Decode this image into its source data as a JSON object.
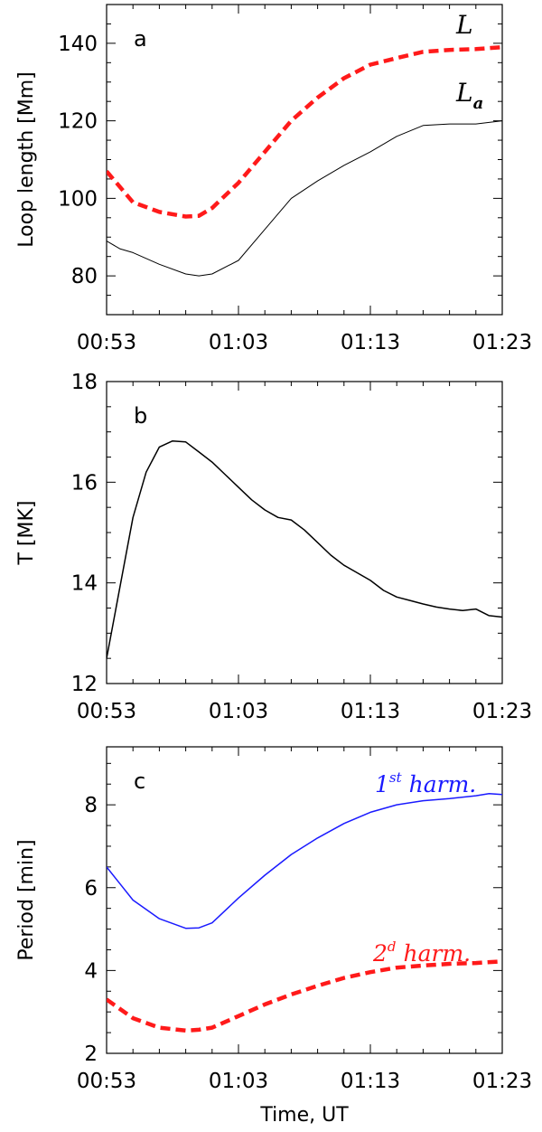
{
  "chart_data": [
    {
      "type": "line",
      "panel_label": "a",
      "ylabel": "Loop length [Mm]",
      "xlabel": "",
      "xlim": [
        "00:53",
        "01:23"
      ],
      "ylim": [
        70,
        150
      ],
      "xticks": [
        "00:53",
        "01:03",
        "01:13",
        "01:23"
      ],
      "yticks": [
        "80",
        "100",
        "120",
        "140"
      ],
      "series": [
        {
          "name": "L",
          "color": "#ff1a1a",
          "style": "dashed-thick",
          "x": [
            "00:53",
            "00:55",
            "00:57",
            "00:59",
            "01:00",
            "01:01",
            "01:03",
            "01:05",
            "01:07",
            "01:09",
            "01:11",
            "01:13",
            "01:15",
            "01:17",
            "01:19",
            "01:21",
            "01:23"
          ],
          "y": [
            107,
            99,
            96.5,
            95.3,
            95.5,
            97.5,
            104,
            112,
            120,
            126,
            131,
            134.5,
            136.2,
            137.8,
            138.3,
            138.5,
            139
          ]
        },
        {
          "name": "L_a",
          "color": "#000000",
          "style": "solid-thin",
          "x": [
            "00:53",
            "00:54",
            "00:55",
            "00:57",
            "00:59",
            "01:00",
            "01:01",
            "01:03",
            "01:05",
            "01:07",
            "01:09",
            "01:11",
            "01:13",
            "01:15",
            "01:17",
            "01:19",
            "01:21",
            "01:23"
          ],
          "y": [
            89,
            87,
            86,
            83,
            80.5,
            80,
            80.5,
            84,
            92,
            100,
            104.5,
            108.5,
            112,
            116,
            118.8,
            119.2,
            119.2,
            120
          ]
        }
      ],
      "annotations": [
        {
          "text": "L",
          "series": "L"
        },
        {
          "text": "L",
          "subscript": "a",
          "series": "L_a"
        }
      ]
    },
    {
      "type": "line",
      "panel_label": "b",
      "ylabel": "T [MK]",
      "xlabel": "",
      "xlim": [
        "00:53",
        "01:23"
      ],
      "ylim": [
        12,
        18
      ],
      "xticks": [
        "00:53",
        "01:03",
        "01:13",
        "01:23"
      ],
      "yticks": [
        "12",
        "14",
        "16",
        "18"
      ],
      "series": [
        {
          "color": "#000000",
          "style": "solid",
          "x": [
            "00:53",
            "00:54",
            "00:55",
            "00:56",
            "00:57",
            "00:58",
            "00:59",
            "01:00",
            "01:01",
            "01:02",
            "01:03",
            "01:04",
            "01:05",
            "01:06",
            "01:07",
            "01:08",
            "01:09",
            "01:10",
            "01:11",
            "01:12",
            "01:13",
            "01:14",
            "01:15",
            "01:16",
            "01:17",
            "01:18",
            "01:19",
            "01:20",
            "01:21",
            "01:22",
            "01:23"
          ],
          "y": [
            12.5,
            13.9,
            15.3,
            16.2,
            16.7,
            16.82,
            16.8,
            16.6,
            16.4,
            16.15,
            15.9,
            15.65,
            15.45,
            15.3,
            15.25,
            15.05,
            14.8,
            14.55,
            14.35,
            14.2,
            14.05,
            13.85,
            13.72,
            13.65,
            13.58,
            13.52,
            13.48,
            13.45,
            13.48,
            13.35,
            13.32
          ]
        }
      ]
    },
    {
      "type": "line",
      "panel_label": "c",
      "ylabel": "Period [min]",
      "xlabel": "Time, UT",
      "xlim": [
        "00:53",
        "01:23"
      ],
      "ylim": [
        2,
        9.4
      ],
      "xticks": [
        "00:53",
        "01:03",
        "01:13",
        "01:23"
      ],
      "yticks": [
        "2",
        "4",
        "6",
        "8"
      ],
      "series": [
        {
          "name": "1st harm.",
          "color": "#1a1aff",
          "style": "solid",
          "x": [
            "00:53",
            "00:54",
            "00:55",
            "00:57",
            "00:59",
            "01:00",
            "01:01",
            "01:03",
            "01:05",
            "01:07",
            "01:09",
            "01:11",
            "01:13",
            "01:15",
            "01:17",
            "01:19",
            "01:21",
            "01:22",
            "01:23"
          ],
          "y": [
            6.5,
            6.1,
            5.7,
            5.25,
            5.02,
            5.03,
            5.15,
            5.75,
            6.3,
            6.8,
            7.2,
            7.55,
            7.82,
            8.0,
            8.1,
            8.15,
            8.22,
            8.27,
            8.25
          ]
        },
        {
          "name": "2d harm.",
          "color": "#ff1a1a",
          "style": "dashed-thick",
          "x": [
            "00:53",
            "00:55",
            "00:57",
            "00:59",
            "01:00",
            "01:01",
            "01:03",
            "01:05",
            "01:07",
            "01:09",
            "01:11",
            "01:13",
            "01:15",
            "01:17",
            "01:19",
            "01:21",
            "01:23"
          ],
          "y": [
            3.3,
            2.85,
            2.62,
            2.55,
            2.57,
            2.62,
            2.9,
            3.18,
            3.42,
            3.63,
            3.82,
            3.96,
            4.07,
            4.12,
            4.16,
            4.18,
            4.22
          ]
        }
      ],
      "annotations": [
        {
          "base": "1",
          "sup": "st",
          "text": "harm.",
          "color": "#1a1aff"
        },
        {
          "base": "2",
          "sup": "d",
          "text": "harm.",
          "color": "#ff1a1a"
        }
      ]
    }
  ]
}
